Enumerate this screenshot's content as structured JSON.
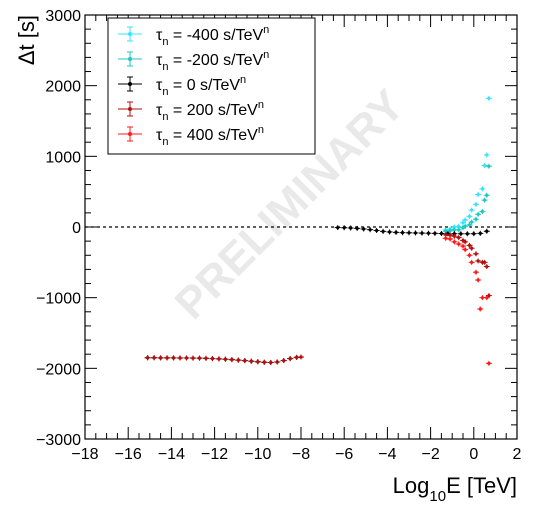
{
  "chart_data": {
    "type": "scatter",
    "xlabel_main": "Log",
    "xlabel_sub": "10",
    "xlabel_rest": "E [TeV]",
    "ylabel": "Δt [s]",
    "xlim": [
      -18,
      2
    ],
    "ylim": [
      -3000,
      3000
    ],
    "x_ticks": [
      -18,
      -16,
      -14,
      -12,
      -10,
      -8,
      -6,
      -4,
      -2,
      0,
      2
    ],
    "y_ticks": [
      -3000,
      -2000,
      -1000,
      0,
      1000,
      2000,
      3000
    ],
    "x_tick_labels": [
      "−18",
      "−16",
      "−14",
      "−12",
      "−10",
      "−8",
      "−6",
      "−4",
      "−2",
      "0",
      "2"
    ],
    "y_tick_labels": [
      "−3000",
      "−2000",
      "−1000",
      "0",
      "1000",
      "2000",
      "3000"
    ],
    "watermark": "PRELIMINARY",
    "zero_line": true,
    "legend_position": "top-left",
    "series": [
      {
        "name_prefix": "τ",
        "name_sub": "n",
        "name_rest": " = -400 s/TeV",
        "name_sup": "n",
        "color": "#33e5ff",
        "points": [
          {
            "x": -1.3,
            "y": -40
          },
          {
            "x": -1.1,
            "y": -30
          },
          {
            "x": -0.9,
            "y": 0
          },
          {
            "x": -0.7,
            "y": 10
          },
          {
            "x": -0.5,
            "y": 60
          },
          {
            "x": -0.4,
            "y": 100
          },
          {
            "x": -0.2,
            "y": 150
          },
          {
            "x": -0.1,
            "y": 240
          },
          {
            "x": 0.1,
            "y": 320
          },
          {
            "x": 0.2,
            "y": 460
          },
          {
            "x": 0.4,
            "y": 540
          },
          {
            "x": 0.5,
            "y": 870
          },
          {
            "x": 0.6,
            "y": 1020
          },
          {
            "x": 0.7,
            "y": 1820
          }
        ]
      },
      {
        "name_prefix": "τ",
        "name_sub": "n",
        "name_rest": " = -200 s/TeV",
        "name_sup": "n",
        "color": "#1fc7c0",
        "points": [
          {
            "x": -1.3,
            "y": -60
          },
          {
            "x": -1.1,
            "y": -55
          },
          {
            "x": -0.9,
            "y": -40
          },
          {
            "x": -0.7,
            "y": -40
          },
          {
            "x": -0.5,
            "y": -10
          },
          {
            "x": -0.4,
            "y": 10
          },
          {
            "x": -0.2,
            "y": 30
          },
          {
            "x": -0.1,
            "y": 70
          },
          {
            "x": 0.1,
            "y": 110
          },
          {
            "x": 0.2,
            "y": 180
          },
          {
            "x": 0.4,
            "y": 220
          },
          {
            "x": 0.5,
            "y": 380
          },
          {
            "x": 0.6,
            "y": 450
          },
          {
            "x": 0.7,
            "y": 860
          }
        ]
      },
      {
        "name_prefix": "τ",
        "name_sub": "n",
        "name_rest": " = 0       s/TeV",
        "name_sup": "n",
        "color": "#000000",
        "points": [
          {
            "x": -15.1,
            "y": -1850
          },
          {
            "x": -14.8,
            "y": -1850
          },
          {
            "x": -14.5,
            "y": -1852
          },
          {
            "x": -14.2,
            "y": -1852
          },
          {
            "x": -13.9,
            "y": -1852
          },
          {
            "x": -13.6,
            "y": -1853
          },
          {
            "x": -13.3,
            "y": -1853
          },
          {
            "x": -13.0,
            "y": -1855
          },
          {
            "x": -12.7,
            "y": -1856
          },
          {
            "x": -12.4,
            "y": -1858
          },
          {
            "x": -12.1,
            "y": -1862
          },
          {
            "x": -11.8,
            "y": -1866
          },
          {
            "x": -11.5,
            "y": -1871
          },
          {
            "x": -11.2,
            "y": -1877
          },
          {
            "x": -10.9,
            "y": -1884
          },
          {
            "x": -10.6,
            "y": -1891
          },
          {
            "x": -10.3,
            "y": -1899
          },
          {
            "x": -10.0,
            "y": -1907
          },
          {
            "x": -9.7,
            "y": -1914
          },
          {
            "x": -9.4,
            "y": -1917
          },
          {
            "x": -9.1,
            "y": -1910
          },
          {
            "x": -8.8,
            "y": -1890
          },
          {
            "x": -8.5,
            "y": -1862
          },
          {
            "x": -8.2,
            "y": -1845
          },
          {
            "x": -8.0,
            "y": -1840
          },
          {
            "x": -6.3,
            "y": -8
          },
          {
            "x": -6.0,
            "y": -10
          },
          {
            "x": -5.7,
            "y": -14
          },
          {
            "x": -5.4,
            "y": -20
          },
          {
            "x": -5.1,
            "y": -28
          },
          {
            "x": -4.8,
            "y": -38
          },
          {
            "x": -4.5,
            "y": -50
          },
          {
            "x": -4.2,
            "y": -62
          },
          {
            "x": -3.9,
            "y": -70
          },
          {
            "x": -3.6,
            "y": -76
          },
          {
            "x": -3.3,
            "y": -80
          },
          {
            "x": -3.0,
            "y": -82
          },
          {
            "x": -2.7,
            "y": -84
          },
          {
            "x": -2.4,
            "y": -86
          },
          {
            "x": -2.1,
            "y": -88
          },
          {
            "x": -1.8,
            "y": -90
          },
          {
            "x": -1.5,
            "y": -92
          },
          {
            "x": -1.2,
            "y": -94
          },
          {
            "x": -0.9,
            "y": -95
          },
          {
            "x": -0.6,
            "y": -96
          },
          {
            "x": -0.3,
            "y": -96
          },
          {
            "x": 0.0,
            "y": -95
          },
          {
            "x": 0.3,
            "y": -90
          },
          {
            "x": 0.6,
            "y": -60
          }
        ]
      },
      {
        "name_prefix": "τ",
        "name_sub": "n",
        "name_rest": " = 200 s/TeV",
        "name_sup": "n",
        "color": "#b31010",
        "points": [
          {
            "x": -15.1,
            "y": -1850
          },
          {
            "x": -14.8,
            "y": -1850
          },
          {
            "x": -14.5,
            "y": -1852
          },
          {
            "x": -14.2,
            "y": -1852
          },
          {
            "x": -13.9,
            "y": -1852
          },
          {
            "x": -13.6,
            "y": -1853
          },
          {
            "x": -13.3,
            "y": -1853
          },
          {
            "x": -13.0,
            "y": -1855
          },
          {
            "x": -12.7,
            "y": -1856
          },
          {
            "x": -12.4,
            "y": -1858
          },
          {
            "x": -12.1,
            "y": -1862
          },
          {
            "x": -11.8,
            "y": -1866
          },
          {
            "x": -11.5,
            "y": -1871
          },
          {
            "x": -11.2,
            "y": -1877
          },
          {
            "x": -10.9,
            "y": -1884
          },
          {
            "x": -10.6,
            "y": -1891
          },
          {
            "x": -10.3,
            "y": -1899
          },
          {
            "x": -10.0,
            "y": -1907
          },
          {
            "x": -9.7,
            "y": -1914
          },
          {
            "x": -9.4,
            "y": -1917
          },
          {
            "x": -9.1,
            "y": -1910
          },
          {
            "x": -8.8,
            "y": -1890
          },
          {
            "x": -8.5,
            "y": -1862
          },
          {
            "x": -8.2,
            "y": -1845
          },
          {
            "x": -8.0,
            "y": -1840
          },
          {
            "x": -1.3,
            "y": -110
          },
          {
            "x": -1.1,
            "y": -115
          },
          {
            "x": -0.9,
            "y": -130
          },
          {
            "x": -0.7,
            "y": -150
          },
          {
            "x": -0.5,
            "y": -190
          },
          {
            "x": -0.4,
            "y": -210
          },
          {
            "x": -0.2,
            "y": -260
          },
          {
            "x": -0.1,
            "y": -300
          },
          {
            "x": 0.1,
            "y": -380
          },
          {
            "x": 0.2,
            "y": -480
          },
          {
            "x": 0.4,
            "y": -500
          },
          {
            "x": 0.5,
            "y": -500
          },
          {
            "x": 0.6,
            "y": -560
          },
          {
            "x": 0.7,
            "y": -970
          }
        ]
      },
      {
        "name_prefix": "τ",
        "name_sub": "n",
        "name_rest": " = 400 s/TeV",
        "name_sup": "n",
        "color": "#ff1a1a",
        "points": [
          {
            "x": -1.3,
            "y": -160
          },
          {
            "x": -1.1,
            "y": -170
          },
          {
            "x": -0.9,
            "y": -210
          },
          {
            "x": -0.7,
            "y": -240
          },
          {
            "x": -0.5,
            "y": -270
          },
          {
            "x": -0.4,
            "y": -320
          },
          {
            "x": -0.2,
            "y": -400
          },
          {
            "x": -0.1,
            "y": -500
          },
          {
            "x": 0.1,
            "y": -640
          },
          {
            "x": 0.2,
            "y": -750
          },
          {
            "x": 0.4,
            "y": -1000
          },
          {
            "x": 0.3,
            "y": -1160
          },
          {
            "x": 0.6,
            "y": -1000
          },
          {
            "x": 0.7,
            "y": -1930
          }
        ]
      }
    ]
  }
}
